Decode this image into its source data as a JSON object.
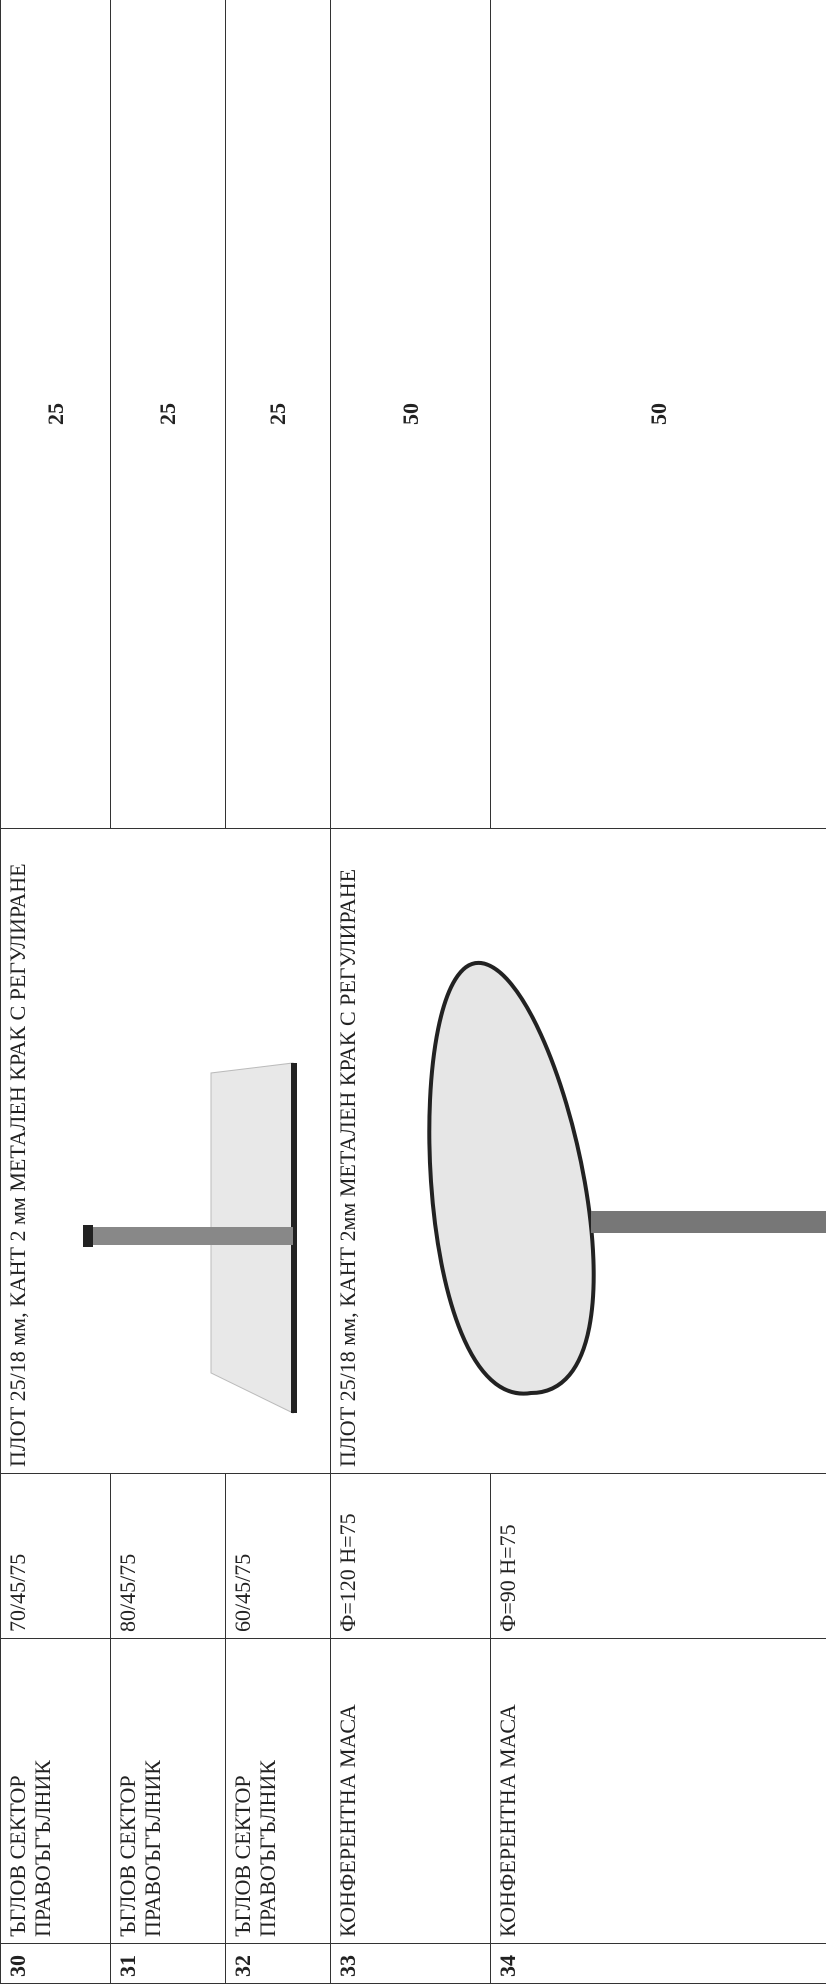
{
  "table": {
    "rows": [
      {
        "number": "30",
        "name": "ЪГЛОВ СЕКТОР ПРАВОЪГЪЛНИК",
        "size": "70/45/75",
        "quantity": "25"
      },
      {
        "number": "31",
        "name": "ЪГЛОВ СЕКТОР ПРАВОЪГЪЛНИК",
        "size": "80/45/75",
        "quantity": "25"
      },
      {
        "number": "32",
        "name": "ЪГЛОВ СЕКТОР ПРАВОЪГЪЛНИК",
        "size": "60/45/75",
        "quantity": "25"
      },
      {
        "number": "33",
        "name": "КОНФЕРЕНТНА МАСА",
        "size": "Ф=120 H=75",
        "quantity": "50"
      },
      {
        "number": "34",
        "name": "КОНФЕРЕНТНА МАСА",
        "size": "Ф=90 H=75",
        "quantity": "50"
      }
    ],
    "descriptions": [
      "ПЛОТ 25/18 мм, КАНТ 2 мм МЕТАЛЕН КРАК С РЕГУЛИРАНЕ",
      "ПЛОТ 25/18 мм, КАНТ 2мм МЕТАЛЕН КРАК С РЕГУЛИРАНЕ"
    ]
  }
}
